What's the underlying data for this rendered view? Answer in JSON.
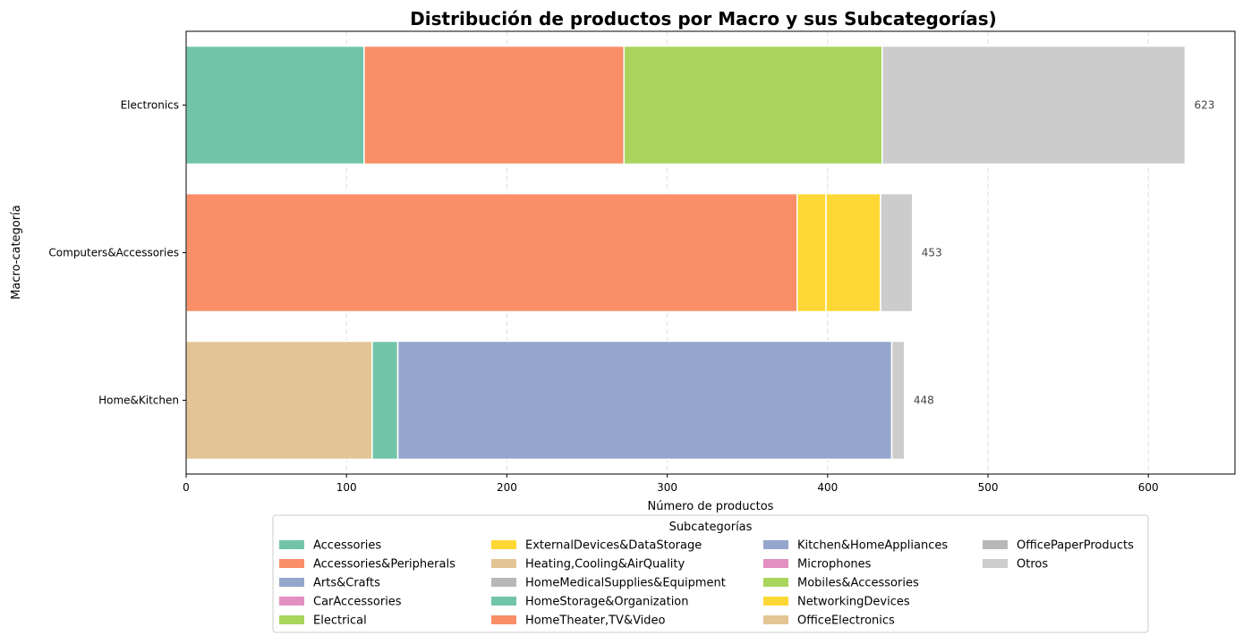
{
  "chart_data": {
    "type": "bar",
    "orientation": "horizontal",
    "stacked": true,
    "title": "Distribución de productos por Macro y sus Subcategorías)",
    "xlabel": "Número de productos",
    "ylabel": "Macro-categoría",
    "xlim": [
      0,
      654
    ],
    "xticks": [
      0,
      100,
      200,
      300,
      400,
      500,
      600
    ],
    "grid": "vertical-dashed",
    "legend_placement": "bottom-center",
    "legend_title": "Subcategorías",
    "categories": [
      "Electronics",
      "Computers&Accessories",
      "Home&Kitchen"
    ],
    "totals": [
      623,
      453,
      448
    ],
    "legend": [
      {
        "name": "Accessories",
        "color": "#72c4a8"
      },
      {
        "name": "Accessories&Peripherals",
        "color": "#fa8e67"
      },
      {
        "name": "Arts&Crafts",
        "color": "#94a6cc"
      },
      {
        "name": "CarAccessories",
        "color": "#e48fc2"
      },
      {
        "name": "Electrical",
        "color": "#a9d55d"
      },
      {
        "name": "ExternalDevices&DataStorage",
        "color": "#fdd835"
      },
      {
        "name": "Heating,Cooling&AirQuality",
        "color": "#e3c595"
      },
      {
        "name": "HomeMedicalSupplies&Equipment",
        "color": "#b8b8b8"
      },
      {
        "name": "HomeStorage&Organization",
        "color": "#72c4a8"
      },
      {
        "name": "HomeTheater,TV&Video",
        "color": "#fa8e67"
      },
      {
        "name": "Kitchen&HomeAppliances",
        "color": "#94a6cc"
      },
      {
        "name": "Microphones",
        "color": "#e48fc2"
      },
      {
        "name": "Mobiles&Accessories",
        "color": "#a9d55d"
      },
      {
        "name": "NetworkingDevices",
        "color": "#fdd835"
      },
      {
        "name": "OfficeElectronics",
        "color": "#e3c595"
      },
      {
        "name": "OfficePaperProducts",
        "color": "#b8b8b8"
      },
      {
        "name": "Otros",
        "color": "#cccccc"
      }
    ],
    "stacks": [
      {
        "category": "Electronics",
        "segments": [
          {
            "name": "HomeStorage&Organization",
            "value": 111,
            "color": "#72c4a8"
          },
          {
            "name": "HomeTheater,TV&Video",
            "value": 162,
            "color": "#fa8e67"
          },
          {
            "name": "Mobiles&Accessories",
            "value": 161,
            "color": "#a9d55d"
          },
          {
            "name": "Otros",
            "value": 189,
            "color": "#cccccc"
          }
        ]
      },
      {
        "category": "Computers&Accessories",
        "segments": [
          {
            "name": "Accessories&Peripherals",
            "value": 381,
            "color": "#fa8e67"
          },
          {
            "name": "ExternalDevices&DataStorage",
            "value": 18,
            "color": "#fdd835"
          },
          {
            "name": "NetworkingDevices",
            "value": 34,
            "color": "#fdd835"
          },
          {
            "name": "Otros",
            "value": 20,
            "color": "#cccccc"
          }
        ]
      },
      {
        "category": "Home&Kitchen",
        "segments": [
          {
            "name": "Heating,Cooling&AirQuality",
            "value": 116,
            "color": "#e3c595"
          },
          {
            "name": "HomeStorage&Organization",
            "value": 16,
            "color": "#72c4a8"
          },
          {
            "name": "Kitchen&HomeAppliances",
            "value": 308,
            "color": "#94a6cc"
          },
          {
            "name": "Otros",
            "value": 8,
            "color": "#cccccc"
          }
        ]
      }
    ]
  }
}
